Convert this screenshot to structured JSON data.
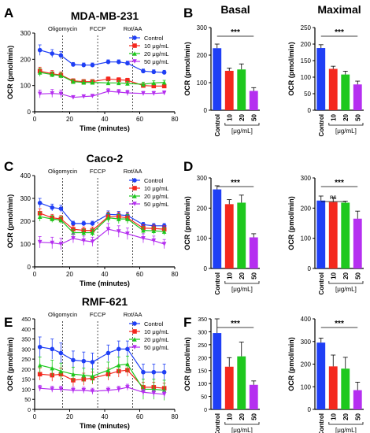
{
  "colors": {
    "control": "#1f3ff5",
    "c10": "#f4281e",
    "c20": "#1ec81e",
    "c50": "#b52ff0"
  },
  "panel_letters": [
    "A",
    "B",
    "C",
    "D",
    "E",
    "F"
  ],
  "chart_data": [
    {
      "type": "line",
      "panel": "A",
      "title": "MDA-MB-231",
      "xlabel": "Time (minutes)",
      "ylabel": "OCR (pmol/min)",
      "xlim": [
        0,
        80
      ],
      "ylim": [
        0,
        300
      ],
      "xticks": [
        0,
        20,
        40,
        60,
        80
      ],
      "yticks": [
        0,
        100,
        200,
        300
      ],
      "annotations": [
        {
          "text": "Oligomycin",
          "x": 16
        },
        {
          "text": "FCCP",
          "x": 36
        },
        {
          "text": "Rot/AA",
          "x": 56
        }
      ],
      "legend_position": "top-right",
      "x": [
        3,
        10,
        15,
        22,
        28,
        33,
        42,
        48,
        53,
        62,
        68,
        74
      ],
      "series": [
        {
          "name": "Control",
          "color_key": "control",
          "values": [
            235,
            222,
            215,
            180,
            178,
            178,
            190,
            190,
            185,
            155,
            152,
            150
          ],
          "errors": [
            20,
            15,
            15,
            8,
            8,
            8,
            8,
            8,
            8,
            8,
            8,
            8
          ]
        },
        {
          "name": "10 μg/mL",
          "color_key": "c10",
          "values": [
            155,
            145,
            140,
            118,
            115,
            115,
            125,
            122,
            120,
            100,
            98,
            98
          ],
          "errors": [
            15,
            12,
            12,
            8,
            8,
            8,
            8,
            8,
            8,
            8,
            8,
            8
          ]
        },
        {
          "name": "20 μg/mL",
          "color_key": "c20",
          "values": [
            150,
            142,
            138,
            115,
            112,
            112,
            110,
            110,
            108,
            105,
            110,
            112
          ],
          "errors": [
            15,
            10,
            10,
            8,
            8,
            8,
            8,
            8,
            8,
            8,
            8,
            8
          ]
        },
        {
          "name": "50 μg/mL",
          "color_key": "c50",
          "values": [
            68,
            70,
            68,
            55,
            58,
            60,
            78,
            75,
            72,
            70,
            70,
            72
          ],
          "errors": [
            15,
            15,
            15,
            5,
            5,
            5,
            10,
            10,
            10,
            8,
            8,
            8
          ]
        }
      ]
    },
    {
      "type": "bar",
      "panel": "B",
      "title": "Basal",
      "ylabel": "OCR (pmol/min)",
      "xlabel": "[μg/mL]",
      "categories": [
        "Control",
        "10",
        "20",
        "50"
      ],
      "ylim": [
        0,
        300
      ],
      "yticks": [
        0,
        100,
        200,
        300
      ],
      "values": [
        225,
        143,
        148,
        70
      ],
      "errors": [
        15,
        10,
        20,
        12
      ],
      "significance": "***"
    },
    {
      "type": "bar",
      "panel": "B",
      "title": "Maximal",
      "ylabel": "OCR (pmol/min)",
      "xlabel": "[μg/mL]",
      "categories": [
        "Control",
        "10",
        "20",
        "50"
      ],
      "ylim": [
        0,
        250
      ],
      "yticks": [
        0,
        50,
        100,
        150,
        200,
        250
      ],
      "values": [
        188,
        125,
        108,
        78
      ],
      "errors": [
        10,
        8,
        10,
        10
      ],
      "significance": "***"
    },
    {
      "type": "line",
      "panel": "C",
      "title": "Caco-2",
      "xlabel": "Time (minutes)",
      "ylabel": "OCR (pmol/min)",
      "xlim": [
        0,
        80
      ],
      "ylim": [
        0,
        400
      ],
      "xticks": [
        0,
        20,
        40,
        60,
        80
      ],
      "yticks": [
        0,
        100,
        200,
        300,
        400
      ],
      "annotations": [
        {
          "text": "Oligomycin",
          "x": 16
        },
        {
          "text": "FCCP",
          "x": 36
        },
        {
          "text": "Rot/AA",
          "x": 56
        }
      ],
      "legend_position": "top-right",
      "x": [
        3,
        10,
        15,
        22,
        28,
        33,
        42,
        48,
        53,
        62,
        68,
        74
      ],
      "series": [
        {
          "name": "Control",
          "color_key": "control",
          "values": [
            280,
            260,
            255,
            190,
            190,
            190,
            230,
            228,
            225,
            185,
            180,
            180
          ],
          "errors": [
            20,
            15,
            15,
            10,
            10,
            10,
            15,
            15,
            15,
            10,
            10,
            10
          ]
        },
        {
          "name": "10 μg/mL",
          "color_key": "c10",
          "values": [
            235,
            215,
            210,
            165,
            160,
            160,
            220,
            220,
            215,
            170,
            168,
            165
          ],
          "errors": [
            20,
            15,
            15,
            15,
            15,
            15,
            20,
            20,
            20,
            15,
            15,
            15
          ]
        },
        {
          "name": "20 μg/mL",
          "color_key": "c20",
          "values": [
            220,
            210,
            205,
            150,
            150,
            150,
            215,
            210,
            210,
            160,
            158,
            155
          ],
          "errors": [
            20,
            15,
            15,
            15,
            15,
            15,
            20,
            20,
            20,
            15,
            15,
            15
          ]
        },
        {
          "name": "50 μg/mL",
          "color_key": "c50",
          "values": [
            108,
            105,
            100,
            125,
            115,
            110,
            165,
            155,
            145,
            125,
            115,
            100
          ],
          "errors": [
            25,
            25,
            25,
            20,
            20,
            20,
            25,
            25,
            25,
            20,
            20,
            20
          ]
        }
      ]
    },
    {
      "type": "bar",
      "panel": "D",
      "title": "",
      "ylabel": "OCR (pmol/min)",
      "xlabel": "[μg/mL]",
      "categories": [
        "Control",
        "10",
        "20",
        "50"
      ],
      "ylim": [
        0,
        300
      ],
      "yticks": [
        0,
        100,
        200,
        300
      ],
      "values": [
        262,
        213,
        218,
        103
      ],
      "errors": [
        12,
        15,
        25,
        12
      ],
      "significance": "***"
    },
    {
      "type": "bar",
      "panel": "D",
      "title": "",
      "ylabel": "OCR (pmol/min)",
      "xlabel": "[μg/mL]",
      "categories": [
        "Control",
        "10",
        "20",
        "50"
      ],
      "ylim": [
        0,
        300
      ],
      "yticks": [
        0,
        100,
        200,
        300
      ],
      "values": [
        225,
        220,
        218,
        165
      ],
      "errors": [
        15,
        15,
        5,
        25
      ],
      "significance": "***",
      "significance2": "ns"
    },
    {
      "type": "line",
      "panel": "E",
      "title": "RMF-621",
      "xlabel": "Time (minutes)",
      "ylabel": "OCR (pmol/min)",
      "xlim": [
        0,
        80
      ],
      "ylim": [
        0,
        450
      ],
      "xticks": [
        0,
        20,
        40,
        60,
        80
      ],
      "yticks": [
        0,
        50,
        100,
        150,
        200,
        250,
        300,
        350,
        400,
        450
      ],
      "annotations": [
        {
          "text": "Oligomycin",
          "x": 16
        },
        {
          "text": "FCCP",
          "x": 36
        },
        {
          "text": "Rot/AA",
          "x": 56
        }
      ],
      "legend_position": "top-right",
      "x": [
        3,
        10,
        15,
        22,
        28,
        33,
        42,
        48,
        53,
        62,
        68,
        74
      ],
      "series": [
        {
          "name": "Control",
          "color_key": "control",
          "values": [
            310,
            300,
            280,
            245,
            240,
            235,
            280,
            300,
            300,
            185,
            185,
            185
          ],
          "errors": [
            50,
            50,
            50,
            45,
            45,
            45,
            40,
            40,
            40,
            40,
            40,
            40
          ]
        },
        {
          "name": "10 μg/mL",
          "color_key": "c10",
          "values": [
            175,
            170,
            175,
            145,
            150,
            155,
            175,
            190,
            195,
            110,
            110,
            105
          ],
          "errors": [
            30,
            30,
            30,
            30,
            30,
            30,
            30,
            30,
            30,
            25,
            25,
            25
          ]
        },
        {
          "name": "20 μg/mL",
          "color_key": "c20",
          "values": [
            220,
            205,
            190,
            175,
            170,
            165,
            195,
            220,
            225,
            100,
            100,
            95
          ],
          "errors": [
            40,
            40,
            40,
            35,
            35,
            35,
            40,
            40,
            40,
            50,
            50,
            50
          ]
        },
        {
          "name": "50 μg/mL",
          "color_key": "c50",
          "values": [
            105,
            100,
            100,
            95,
            95,
            90,
            95,
            100,
            110,
            85,
            80,
            75
          ],
          "errors": [
            15,
            15,
            15,
            15,
            15,
            15,
            15,
            15,
            15,
            15,
            15,
            15
          ]
        }
      ]
    },
    {
      "type": "bar",
      "panel": "F",
      "title": "",
      "ylabel": "OCR (pmol/min)",
      "xlabel": "[μg/mL]",
      "categories": [
        "Control",
        "10",
        "20",
        "50"
      ],
      "ylim": [
        0,
        350
      ],
      "yticks": [
        0,
        50,
        100,
        150,
        200,
        250,
        300,
        350
      ],
      "values": [
        295,
        165,
        205,
        95
      ],
      "errors": [
        55,
        35,
        55,
        15
      ],
      "significance": "***"
    },
    {
      "type": "bar",
      "panel": "F",
      "title": "",
      "ylabel": "OCR (pmol/min)",
      "xlabel": "[μg/mL]",
      "categories": [
        "Control",
        "10",
        "20",
        "50"
      ],
      "ylim": [
        0,
        400
      ],
      "yticks": [
        0,
        100,
        200,
        300,
        400
      ],
      "values": [
        295,
        190,
        180,
        85
      ],
      "errors": [
        20,
        50,
        50,
        35
      ],
      "significance": "***"
    }
  ]
}
